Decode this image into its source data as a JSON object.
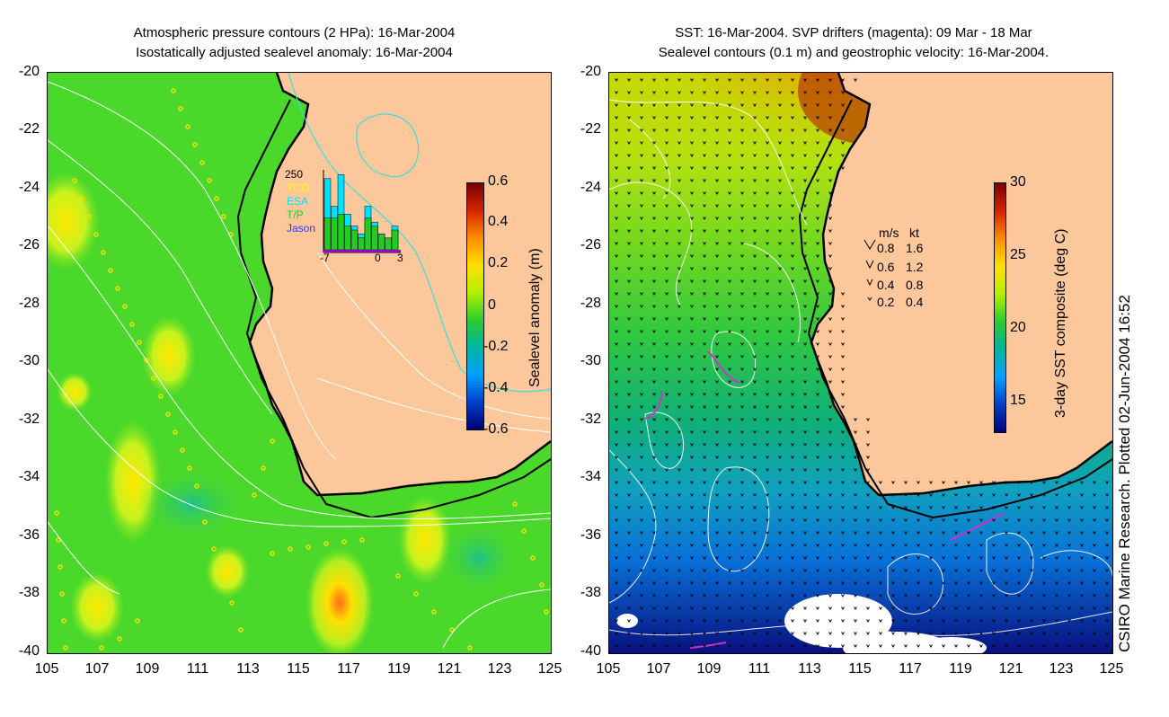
{
  "left_panel": {
    "title_line1": "Atmospheric pressure contours (2 HPa): 16-Mar-2004",
    "title_line2": "Isostatically adjusted sealevel anomaly: 16-Mar-2004",
    "y_ticks": [
      "-20",
      "-22",
      "-24",
      "-26",
      "-28",
      "-30",
      "-32",
      "-34",
      "-36",
      "-38",
      "-40"
    ],
    "x_ticks": [
      "105",
      "107",
      "109",
      "111",
      "113",
      "115",
      "117",
      "119",
      "121",
      "123",
      "125"
    ],
    "colorbar": {
      "label": "Sealevel anomaly (m)",
      "ticks": [
        "0.6",
        "0.4",
        "0.2",
        "0",
        "-0.2",
        "-0.4",
        "-0.6"
      ]
    },
    "histogram": {
      "ymax_label": "250",
      "legend": [
        {
          "label": "TCO",
          "color": "#ffff00"
        },
        {
          "label": "ESA",
          "color": "#00e0ff"
        },
        {
          "label": "T/P",
          "color": "#22cc22"
        },
        {
          "label": "Jason",
          "color": "#3333ff"
        }
      ],
      "x_ticks": [
        "-7",
        "0",
        "3"
      ],
      "bars_esa": [
        0.9,
        0.55,
        0.95,
        0.45,
        0.3,
        0.2,
        0.55,
        0.35,
        0.2,
        0.15,
        0.3
      ],
      "bars_tp": [
        0.4,
        0.4,
        0.45,
        0.3,
        0.25,
        0.15,
        0.4,
        0.3,
        0.2,
        0.15,
        0.25
      ]
    }
  },
  "right_panel": {
    "title_line1": "SST: 16-Mar-2004. SVP drifters (magenta): 09 Mar - 18 Mar",
    "title_line2": "Sealevel contours (0.1 m) and geostrophic velocity: 16-Mar-2004.",
    "y_ticks": [
      "-20",
      "-22",
      "-24",
      "-26",
      "-28",
      "-30",
      "-32",
      "-34",
      "-36",
      "-38",
      "-40"
    ],
    "x_ticks": [
      "105",
      "107",
      "109",
      "111",
      "113",
      "115",
      "117",
      "119",
      "121",
      "123",
      "125"
    ],
    "colorbar": {
      "label": "3-day SST composite (deg C)",
      "ticks": [
        "30",
        "25",
        "20",
        "15"
      ]
    },
    "velocity_legend": {
      "header_ms": "m/s",
      "header_kt": "kt",
      "rows": [
        {
          "ms": "0.8",
          "kt": "1.6"
        },
        {
          "ms": "0.6",
          "kt": "1.2"
        },
        {
          "ms": "0.4",
          "kt": "0.8"
        },
        {
          "ms": "0.2",
          "kt": "0.4"
        }
      ]
    }
  },
  "credit": "CSIRO Marine Research. Plotted 02-Jun-2004 16:52",
  "colors": {
    "land": "#fcc89b",
    "ocean_green": "#46d92a",
    "contour_white": "#ffffff",
    "contour_cyan": "#33e0e0",
    "coast": "#000000"
  }
}
